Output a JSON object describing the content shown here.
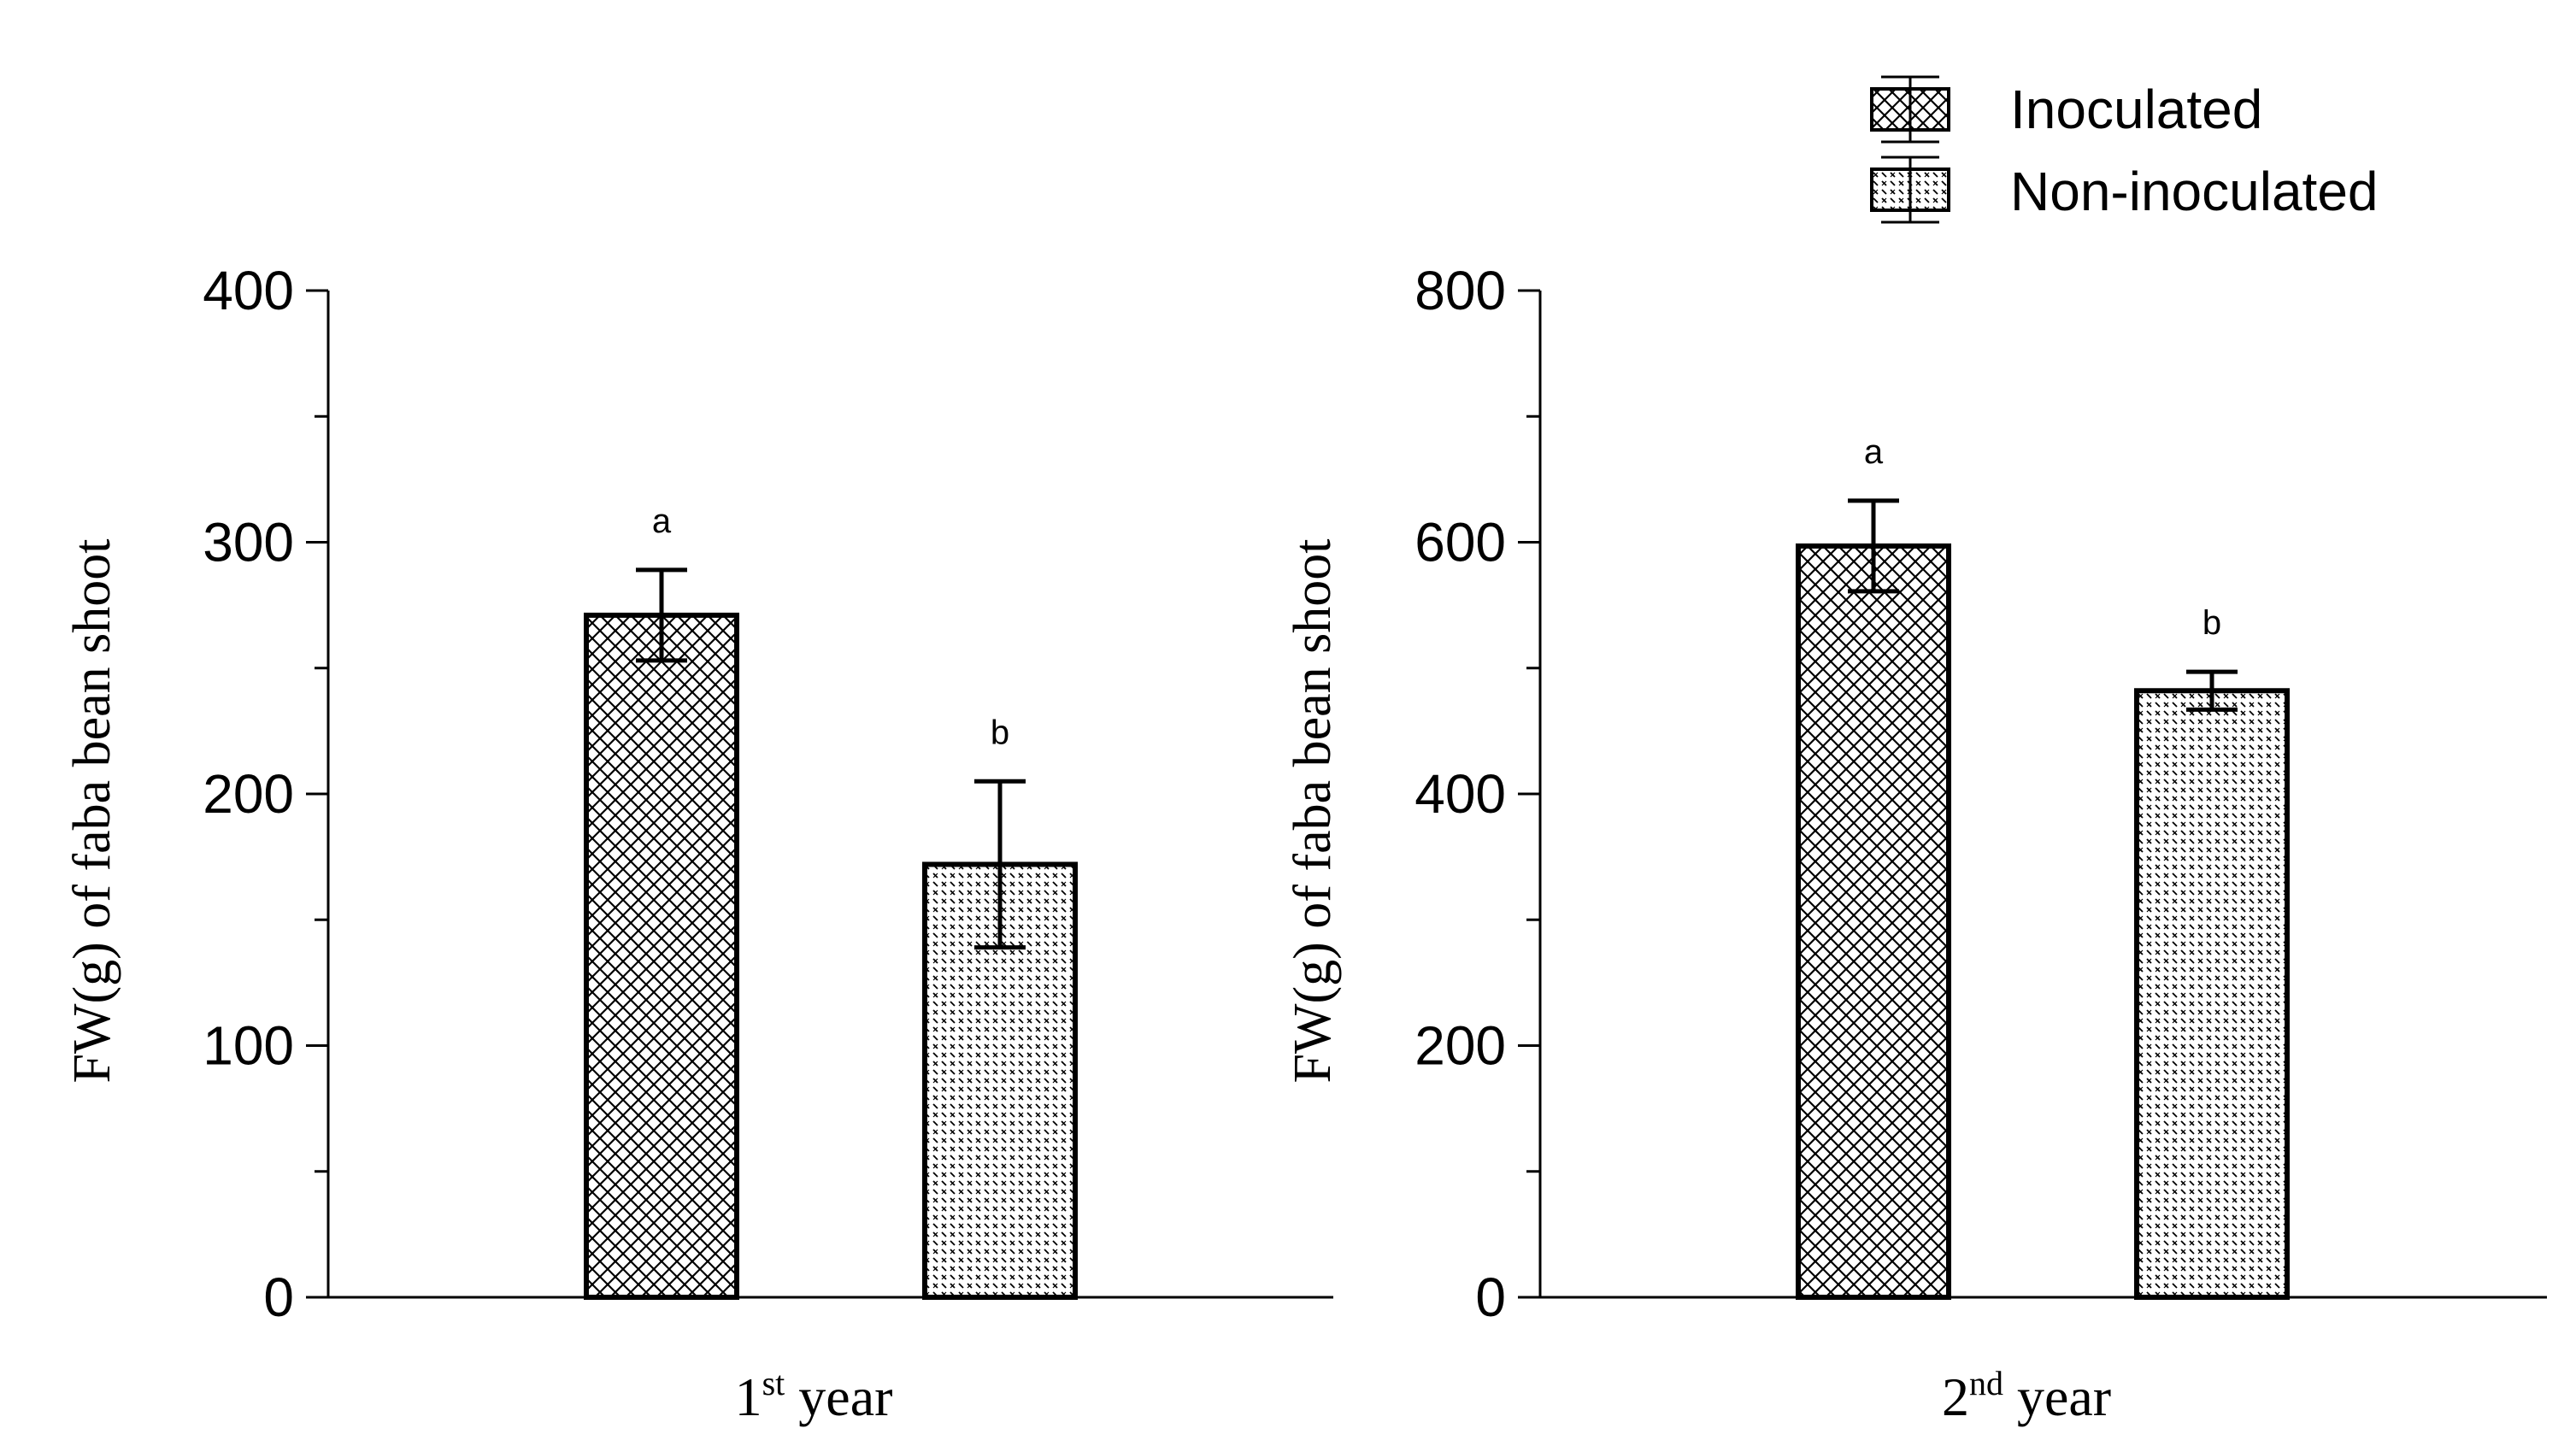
{
  "legend": {
    "items": [
      {
        "label": "Inoculated",
        "pattern": "crosshatch"
      },
      {
        "label": "Non-inoculated",
        "pattern": "dotted"
      }
    ]
  },
  "chart_data": [
    {
      "type": "bar",
      "ylabel": "FW(g) of faba bean shoot",
      "xlabel_main": "1",
      "xlabel_sup": "st",
      "xlabel_rest": " year",
      "ylim": [
        0,
        400
      ],
      "yticks": [
        0,
        100,
        200,
        300,
        400
      ],
      "minor_step": 50,
      "series": [
        {
          "name": "Inoculated",
          "value": 271,
          "error": 18,
          "letter": "a",
          "pattern": "crosshatch"
        },
        {
          "name": "Non-inoculated",
          "value": 172,
          "error": 33,
          "letter": "b",
          "pattern": "dotted"
        }
      ]
    },
    {
      "type": "bar",
      "ylabel": "FW(g) of faba bean shoot",
      "xlabel_main": "2",
      "xlabel_sup": "nd",
      "xlabel_rest": " year",
      "ylim": [
        0,
        800
      ],
      "yticks": [
        0,
        200,
        400,
        600,
        800
      ],
      "minor_step": 100,
      "series": [
        {
          "name": "Inoculated",
          "value": 597,
          "error": 36,
          "letter": "a",
          "pattern": "crosshatch"
        },
        {
          "name": "Non-inoculated",
          "value": 482,
          "error": 15,
          "letter": "b",
          "pattern": "dotted"
        }
      ]
    }
  ]
}
